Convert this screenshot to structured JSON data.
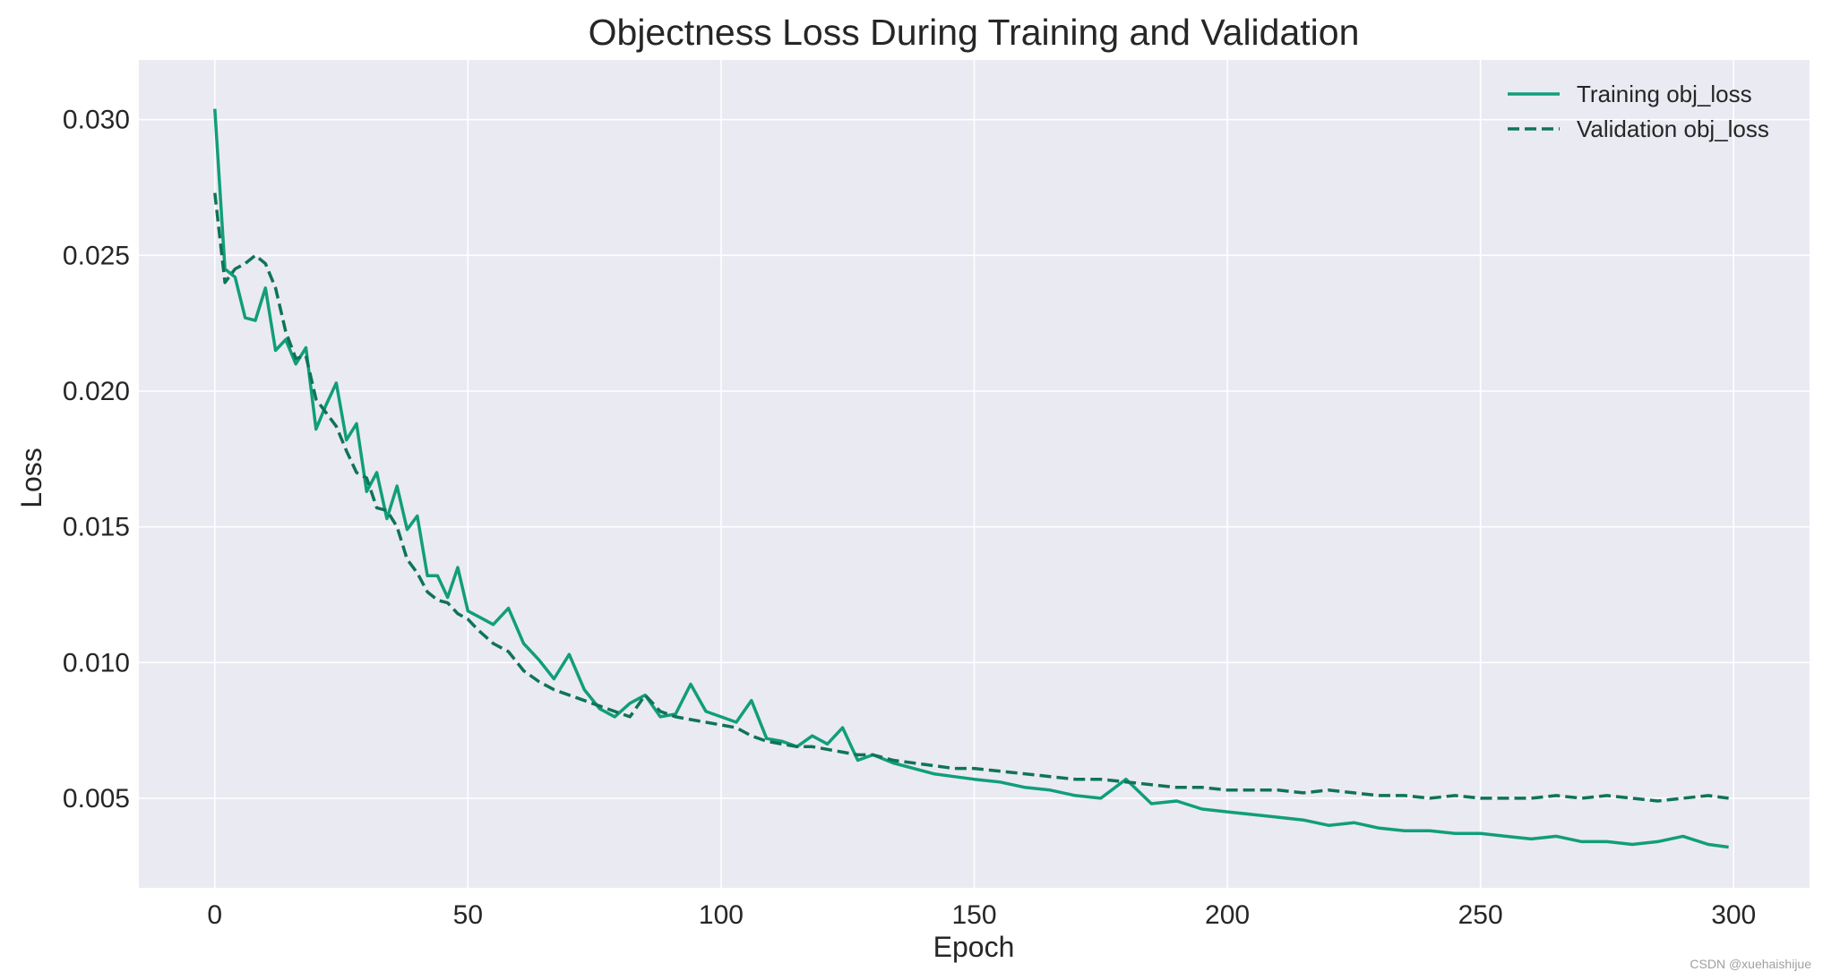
{
  "chart_data": {
    "type": "line",
    "title": "Objectness Loss During Training and Validation",
    "xlabel": "Epoch",
    "ylabel": "Loss",
    "xlim": [
      -15,
      315
    ],
    "ylim": [
      0.0017,
      0.0322
    ],
    "xticks": [
      0,
      50,
      100,
      150,
      200,
      250,
      300
    ],
    "xtick_labels": [
      "0",
      "50",
      "100",
      "150",
      "200",
      "250",
      "300"
    ],
    "yticks": [
      0.005,
      0.01,
      0.015,
      0.02,
      0.025,
      0.03
    ],
    "ytick_labels": [
      "0.005",
      "0.010",
      "0.015",
      "0.020",
      "0.025",
      "0.030"
    ],
    "grid": true,
    "legend_position": "top-right",
    "series": [
      {
        "name": "Training obj_loss",
        "style": "solid",
        "color": "#119e7a",
        "x": [
          0,
          2,
          4,
          6,
          8,
          10,
          12,
          14,
          16,
          18,
          20,
          22,
          24,
          26,
          28,
          30,
          32,
          34,
          36,
          38,
          40,
          42,
          44,
          46,
          48,
          50,
          52,
          55,
          58,
          61,
          64,
          67,
          70,
          73,
          76,
          79,
          82,
          85,
          88,
          91,
          94,
          97,
          100,
          103,
          106,
          109,
          112,
          115,
          118,
          121,
          124,
          127,
          130,
          134,
          138,
          142,
          146,
          150,
          155,
          160,
          165,
          170,
          175,
          180,
          185,
          190,
          195,
          200,
          205,
          210,
          215,
          220,
          225,
          230,
          235,
          240,
          245,
          250,
          255,
          260,
          265,
          270,
          275,
          280,
          285,
          290,
          295,
          299
        ],
        "values": [
          0.0304,
          0.0245,
          0.0242,
          0.0227,
          0.0226,
          0.0238,
          0.0215,
          0.0219,
          0.021,
          0.0216,
          0.0186,
          0.0195,
          0.0203,
          0.0182,
          0.0188,
          0.0163,
          0.017,
          0.0153,
          0.0165,
          0.0149,
          0.0154,
          0.0132,
          0.0132,
          0.0124,
          0.0135,
          0.0119,
          0.0117,
          0.0114,
          0.012,
          0.0107,
          0.0101,
          0.0094,
          0.0103,
          0.009,
          0.0083,
          0.008,
          0.0085,
          0.0088,
          0.008,
          0.0081,
          0.0092,
          0.0082,
          0.008,
          0.0078,
          0.0086,
          0.0072,
          0.0071,
          0.0069,
          0.0073,
          0.007,
          0.0076,
          0.0064,
          0.0066,
          0.0063,
          0.0061,
          0.0059,
          0.0058,
          0.0057,
          0.0056,
          0.0054,
          0.0053,
          0.0051,
          0.005,
          0.0057,
          0.0048,
          0.0049,
          0.0046,
          0.0045,
          0.0044,
          0.0043,
          0.0042,
          0.004,
          0.0041,
          0.0039,
          0.0038,
          0.0038,
          0.0037,
          0.0037,
          0.0036,
          0.0035,
          0.0036,
          0.0034,
          0.0034,
          0.0033,
          0.0034,
          0.0036,
          0.0033,
          0.0032
        ]
      },
      {
        "name": "Validation obj_loss",
        "style": "dashed",
        "color": "#0f7456",
        "x": [
          0,
          2,
          4,
          6,
          8,
          10,
          12,
          14,
          16,
          18,
          20,
          22,
          24,
          26,
          28,
          30,
          32,
          34,
          36,
          38,
          40,
          42,
          44,
          46,
          48,
          50,
          52,
          55,
          58,
          61,
          64,
          67,
          70,
          73,
          76,
          79,
          82,
          85,
          88,
          91,
          94,
          97,
          100,
          103,
          106,
          109,
          112,
          115,
          118,
          121,
          124,
          127,
          130,
          134,
          138,
          142,
          146,
          150,
          155,
          160,
          165,
          170,
          175,
          180,
          185,
          190,
          195,
          200,
          205,
          210,
          215,
          220,
          225,
          230,
          235,
          240,
          245,
          250,
          255,
          260,
          265,
          270,
          275,
          280,
          285,
          290,
          295,
          299
        ],
        "values": [
          0.0273,
          0.024,
          0.0245,
          0.0247,
          0.025,
          0.0247,
          0.0238,
          0.0222,
          0.0212,
          0.0213,
          0.0197,
          0.0192,
          0.0187,
          0.0178,
          0.017,
          0.0168,
          0.0157,
          0.0156,
          0.015,
          0.0138,
          0.0133,
          0.0126,
          0.0123,
          0.0122,
          0.0118,
          0.0116,
          0.0112,
          0.0107,
          0.0104,
          0.0097,
          0.0093,
          0.009,
          0.0088,
          0.0086,
          0.0084,
          0.0082,
          0.008,
          0.0088,
          0.0082,
          0.008,
          0.0079,
          0.0078,
          0.0077,
          0.0076,
          0.0073,
          0.0071,
          0.007,
          0.0069,
          0.0069,
          0.0068,
          0.0067,
          0.0066,
          0.0066,
          0.0064,
          0.0063,
          0.0062,
          0.0061,
          0.0061,
          0.006,
          0.0059,
          0.0058,
          0.0057,
          0.0057,
          0.0056,
          0.0055,
          0.0054,
          0.0054,
          0.0053,
          0.0053,
          0.0053,
          0.0052,
          0.0053,
          0.0052,
          0.0051,
          0.0051,
          0.005,
          0.0051,
          0.005,
          0.005,
          0.005,
          0.0051,
          0.005,
          0.0051,
          0.005,
          0.0049,
          0.005,
          0.0051,
          0.005
        ]
      }
    ]
  },
  "watermark": "CSDN @xuehaishijue"
}
